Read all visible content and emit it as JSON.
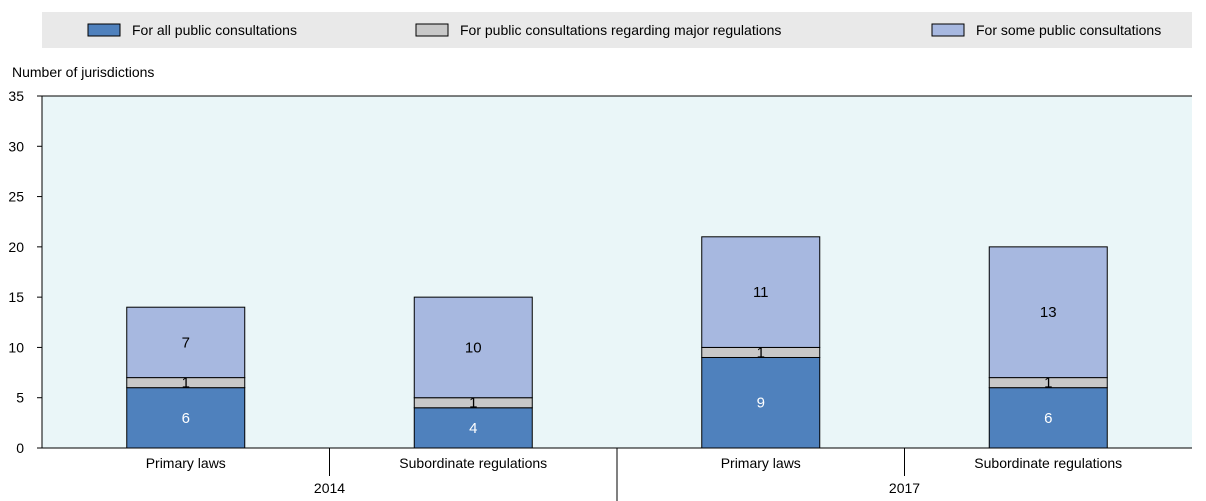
{
  "chart_data": {
    "type": "bar",
    "stacked": true,
    "ylabel": "Number of jurisdictions",
    "ylim": [
      0,
      35
    ],
    "yticks": [
      0,
      5,
      10,
      15,
      20,
      25,
      30,
      35
    ],
    "categories": [
      "Primary laws",
      "Subordinate regulations",
      "Primary laws",
      "Subordinate regulations"
    ],
    "groups": [
      {
        "label": "2014",
        "span": 2
      },
      {
        "label": "2017",
        "span": 2
      }
    ],
    "series": [
      {
        "name": "For all public consultations",
        "color": "#4f81bd",
        "values": [
          6,
          4,
          9,
          6
        ]
      },
      {
        "name": "For public consultations regarding major regulations",
        "color": "#c8c8c8",
        "values": [
          1,
          1,
          1,
          1
        ]
      },
      {
        "name": "For some public consultations",
        "color": "#a7b8e0",
        "values": [
          7,
          10,
          11,
          13
        ]
      }
    ],
    "legend_position": "top",
    "grid": false,
    "plot_background": "#eaf6f8"
  }
}
